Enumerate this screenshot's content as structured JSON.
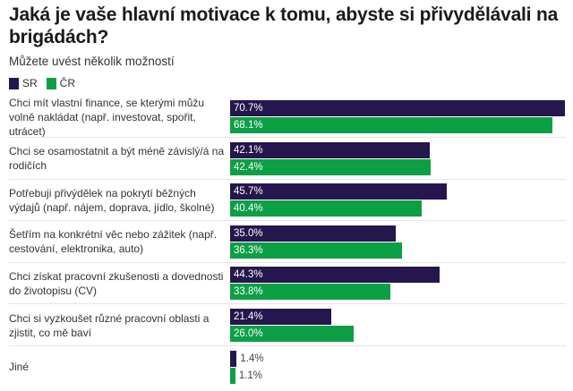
{
  "chart_data": {
    "type": "bar",
    "orientation": "horizontal",
    "title": "Jaká je vaše hlavní motivace k tomu, abyste si přivydělávali na brigádách?",
    "subtitle": "Můžete uvést několik možností",
    "unit": "%",
    "legend_placement": "top-left",
    "categories": [
      "Chci mít vlastní finance, se kterými můžu volně nakládat (např. investovat, spořit, utrácet)",
      "Chci se osamostatnit a být méně závislý/á na rodičích",
      "Potřebuji přivýdělek na pokrytí běžných výdajů (např. nájem, doprava, jídlo, školné)",
      "Šetřím na konkrétní věc nebo zážitek (např. cestování, elektronika, auto)",
      "Chci získat pracovní zkušenosti a dovednosti do životopisu (CV)",
      "Chci si vyzkoušet různé pracovní oblasti a zjistit, co mě baví",
      "Jiné"
    ],
    "series": [
      {
        "name": "SR",
        "color": "#25164d",
        "values": [
          70.7,
          42.1,
          45.7,
          35.0,
          44.3,
          21.4,
          1.4
        ]
      },
      {
        "name": "ČR",
        "color": "#0d9f45",
        "values": [
          68.1,
          42.4,
          40.4,
          36.3,
          33.8,
          26.0,
          1.1
        ]
      }
    ],
    "xlim": [
      0,
      70.7
    ]
  }
}
